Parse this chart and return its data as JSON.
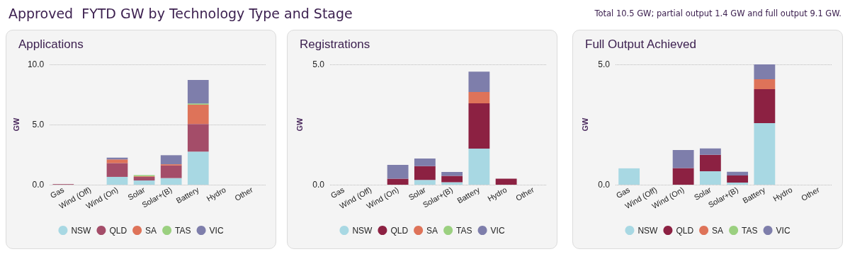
{
  "chart_data": [
    {
      "type": "other",
      "title": "Approved  FYTD GW by Technology Type and Stage",
      "annotations": [
        "Total 10.5 GW; partial output 1.4 GW and full output 9.1 GW."
      ]
    },
    {
      "type": "bar",
      "title": "Applications",
      "ylabel": "GW",
      "stacked": true,
      "categories": [
        "Gas",
        "Wind (Off)",
        "Wind (On)",
        "Solar",
        "Solar+(B)",
        "Battery",
        "Hydro",
        "Other"
      ],
      "series": [
        {
          "name": "NSW",
          "color": "#a8d8e3",
          "values": [
            null,
            null,
            0.65,
            0.35,
            0.55,
            2.75,
            null,
            null
          ]
        },
        {
          "name": "QLD",
          "color": "#a44d69",
          "values": [
            0.05,
            null,
            1.15,
            0.3,
            1.05,
            2.3,
            null,
            null
          ]
        },
        {
          "name": "SA",
          "color": "#de7359",
          "values": [
            null,
            null,
            0.3,
            0.05,
            0.1,
            1.6,
            null,
            null
          ]
        },
        {
          "name": "TAS",
          "color": "#9bd080",
          "values": [
            null,
            null,
            null,
            0.1,
            null,
            0.1,
            null,
            null
          ]
        },
        {
          "name": "VIC",
          "color": "#7e7eab",
          "values": [
            null,
            null,
            0.15,
            null,
            0.75,
            1.95,
            null,
            null
          ]
        }
      ],
      "ylim": [
        0,
        10
      ],
      "yticks": [
        {
          "value": 0,
          "label": "0.0"
        },
        {
          "value": 5,
          "label": "5.0"
        },
        {
          "value": 10,
          "label": "10.0"
        }
      ],
      "grid": "y",
      "legend": "bottom"
    },
    {
      "type": "bar",
      "title": "Registrations",
      "ylabel": "GW",
      "stacked": true,
      "categories": [
        "Gas",
        "Wind (Off)",
        "Wind (On)",
        "Solar",
        "Solar+(B)",
        "Battery",
        "Hydro",
        "Other"
      ],
      "series": [
        {
          "name": "NSW",
          "color": "#a8d8e3",
          "values": [
            null,
            null,
            null,
            0.2,
            0.1,
            1.5,
            null,
            null
          ]
        },
        {
          "name": "QLD",
          "color": "#8c2142",
          "values": [
            null,
            null,
            0.25,
            0.57,
            0.27,
            1.88,
            0.25,
            null
          ]
        },
        {
          "name": "SA",
          "color": "#de7359",
          "values": [
            null,
            null,
            null,
            null,
            null,
            0.47,
            null,
            null
          ]
        },
        {
          "name": "TAS",
          "color": "#9bd080",
          "values": [
            null,
            null,
            null,
            null,
            null,
            null,
            null,
            null
          ]
        },
        {
          "name": "VIC",
          "color": "#7e7eab",
          "values": [
            null,
            null,
            0.57,
            0.32,
            0.16,
            0.85,
            null,
            null
          ]
        }
      ],
      "ylim": [
        0,
        5
      ],
      "yticks": [
        {
          "value": 0,
          "label": "0.0"
        },
        {
          "value": 5,
          "label": "5.0"
        }
      ],
      "grid": "y",
      "legend": "bottom"
    },
    {
      "type": "bar",
      "title": "Full Output Achieved",
      "ylabel": "GW",
      "stacked": true,
      "categories": [
        "Gas",
        "Wind (Off)",
        "Wind (On)",
        "Solar",
        "Solar+(B)",
        "Battery",
        "Hydro",
        "Other"
      ],
      "series": [
        {
          "name": "NSW",
          "color": "#a8d8e3",
          "values": [
            0.68,
            null,
            null,
            0.56,
            0.09,
            2.56,
            null,
            null
          ]
        },
        {
          "name": "QLD",
          "color": "#8c2142",
          "values": [
            null,
            null,
            0.69,
            0.68,
            0.29,
            1.41,
            null,
            null
          ]
        },
        {
          "name": "SA",
          "color": "#de7359",
          "values": [
            null,
            null,
            null,
            null,
            null,
            0.41,
            null,
            null
          ]
        },
        {
          "name": "TAS",
          "color": "#9bd080",
          "values": [
            null,
            null,
            null,
            null,
            null,
            null,
            null,
            null
          ]
        },
        {
          "name": "VIC",
          "color": "#7e7eab",
          "values": [
            null,
            null,
            0.75,
            0.27,
            0.16,
            0.62,
            null,
            null
          ]
        }
      ],
      "ylim": [
        0,
        5
      ],
      "yticks": [
        {
          "value": 0,
          "label": "0.0"
        },
        {
          "value": 5,
          "label": "5.0"
        }
      ],
      "grid": "y",
      "legend": "bottom"
    }
  ]
}
